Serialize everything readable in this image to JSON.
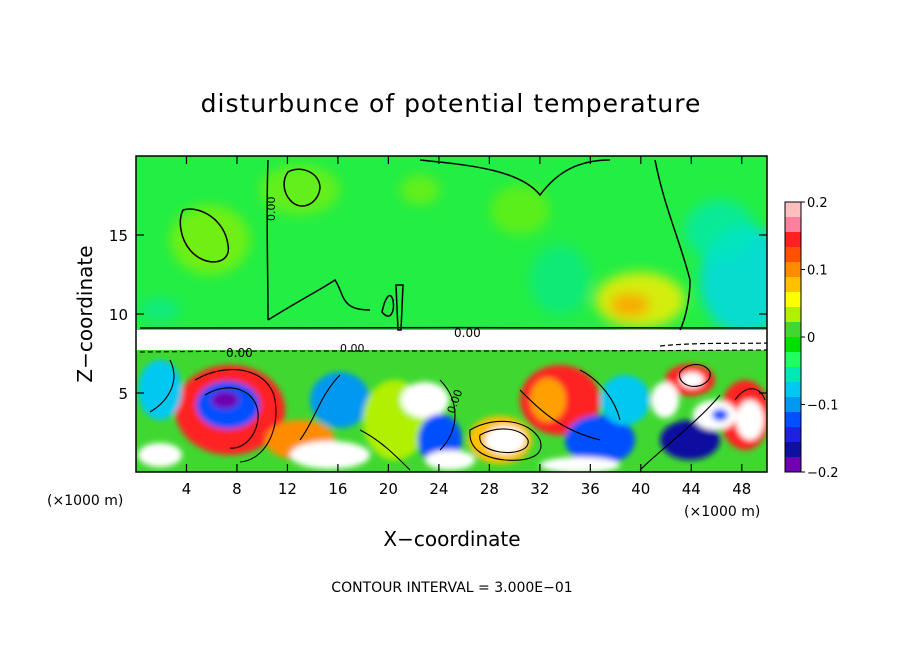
{
  "chart_data": {
    "type": "heatmap",
    "title": "disturbunce of potential temperature",
    "xlabel": "X−coordinate",
    "ylabel": "Z−coordinate",
    "x_unit": "(×1000 m)",
    "x_unit_right": "(×1000 m)",
    "xlim": [
      0,
      50
    ],
    "ylim": [
      0,
      20
    ],
    "x_ticks": [
      4,
      8,
      12,
      16,
      20,
      24,
      28,
      32,
      36,
      40,
      44,
      48
    ],
    "x_tick_labels": [
      "4",
      "8",
      "12",
      "16",
      "20",
      "24",
      "28",
      "32",
      "36",
      "40",
      "44",
      "48"
    ],
    "y_ticks": [
      5,
      10,
      15
    ],
    "y_tick_labels": [
      "5",
      "10",
      "15"
    ],
    "colorbar": {
      "min": -0.2,
      "max": 0.2,
      "ticks": [
        0.2,
        0.1,
        0,
        -0.1,
        -0.2
      ],
      "tick_labels": [
        "0.2",
        "0.1",
        "0",
        "−0.1",
        "−0.2"
      ],
      "colors": [
        "#ffbfbf",
        "#ff7f9f",
        "#ff2020",
        "#ff5000",
        "#ff8c00",
        "#ffc000",
        "#ffff00",
        "#b0f000",
        "#40d830",
        "#00e000",
        "#20ff60",
        "#00e8b8",
        "#00c8f0",
        "#0098f0",
        "#0050ff",
        "#2020e0",
        "#1010a0",
        "#7000b0"
      ]
    },
    "contour_labels": [
      "0.00",
      "0.00",
      "0.00",
      "0.00",
      "0.00"
    ],
    "footer": "CONTOUR INTERVAL = 3.000E−01",
    "grid": false
  }
}
